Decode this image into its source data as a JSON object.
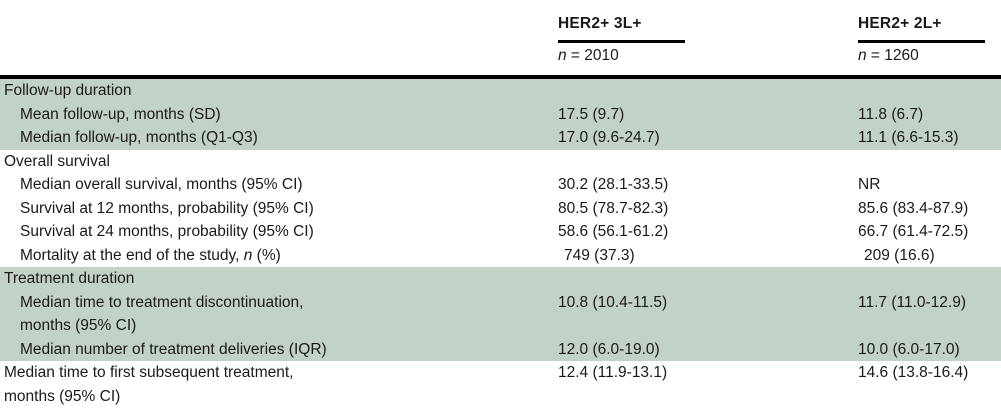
{
  "accent": {
    "band_green": "#c3d2c6",
    "rule_black": "#000000",
    "text": "#1a1a1a"
  },
  "header": {
    "col2": {
      "title": "HER2+ 3L+",
      "n_italic": "n",
      "n_rest": " = 2010"
    },
    "col3": {
      "title": "HER2+ 2L+",
      "n_italic": "n",
      "n_rest": " = 1260"
    }
  },
  "rows": [
    {
      "type": "section",
      "label": "Follow-up duration"
    },
    {
      "label": "Mean follow-up, months (SD)",
      "v1": "17.5 (9.7)",
      "v2": "11.8 (6.7)"
    },
    {
      "label": "Median follow-up, months (Q1-Q3)",
      "v1": "17.0 (9.6-24.7)",
      "v2": "11.1 (6.6-15.3)"
    },
    {
      "type": "section",
      "label": "Overall survival"
    },
    {
      "label": "Median overall survival, months (95% CI)",
      "v1": "30.2 (28.1-33.5)",
      "v2": "NR"
    },
    {
      "label": "Survival at 12 months, probability (95% CI)",
      "v1": "80.5 (78.7-82.3)",
      "v2": "85.6 (83.4-87.9)"
    },
    {
      "label": "Survival at 24 months, probability (95% CI)",
      "v1": "58.6 (56.1-61.2)",
      "v2": "66.7 (61.4-72.5)"
    },
    {
      "label_pre": "Mortality at the end of the study, ",
      "label_it": "n",
      "label_post": " (%)",
      "v1": "749 (37.3)",
      "v2": "209 (16.6)"
    },
    {
      "type": "section",
      "label": "Treatment duration"
    },
    {
      "line1": "Median time to treatment discontinuation,",
      "line2": "months (95% CI)",
      "v1": "10.8 (10.4-11.5)",
      "v2": "11.7 (11.0-12.9)"
    },
    {
      "label": "Median number of treatment deliveries (IQR)",
      "v1": "12.0 (6.0-19.0)",
      "v2": "10.0 (6.0-17.0)"
    },
    {
      "line1": "Median time to first subsequent treatment,",
      "line2": "months (95% CI)",
      "v1": "12.4 (11.9-13.1)",
      "v2": "14.6 (13.8-16.4)"
    }
  ]
}
